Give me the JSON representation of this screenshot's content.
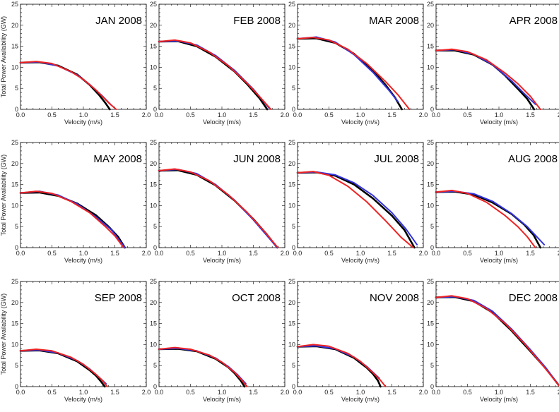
{
  "figure": {
    "xlabel": "Velocity (m/s)",
    "ylabel": "Total Power Availability (GW)",
    "xlim": [
      0,
      2.0
    ],
    "ylim": [
      0,
      25
    ],
    "xticks": [
      "0.0",
      "0.5",
      "1.0",
      "1.5",
      "2.0"
    ],
    "yticks": [
      "0",
      "5",
      "10",
      "15",
      "20",
      "25"
    ],
    "colors": {
      "observed": "#000000",
      "fit_blue": "#3333dd",
      "fit_red": "#ee2222"
    }
  },
  "chart_data": [
    {
      "type": "line",
      "title": "JAN 2008",
      "xlim": [
        0,
        2.0
      ],
      "ylim": [
        0,
        25
      ],
      "series": [
        {
          "color": "#000000",
          "x": [
            0,
            0.3,
            0.6,
            0.9,
            1.1,
            1.25,
            1.35,
            1.42
          ],
          "y": [
            11.1,
            11.2,
            10.4,
            8.3,
            5.8,
            3.4,
            1.5,
            0
          ]
        },
        {
          "color": "#3333dd",
          "x": [
            0,
            0.3,
            0.6,
            0.9,
            1.1,
            1.3,
            1.45
          ],
          "y": [
            11.1,
            11.3,
            10.3,
            8.2,
            5.9,
            3.2,
            0.9
          ]
        },
        {
          "color": "#ee2222",
          "x": [
            0,
            0.25,
            0.5,
            0.8,
            1.0,
            1.2,
            1.4,
            1.52
          ],
          "y": [
            11.1,
            11.4,
            10.9,
            9.0,
            7.1,
            4.6,
            1.6,
            0
          ]
        }
      ]
    },
    {
      "type": "line",
      "title": "FEB 2008",
      "xlim": [
        0,
        2.0
      ],
      "ylim": [
        0,
        25
      ],
      "series": [
        {
          "color": "#000000",
          "x": [
            0,
            0.3,
            0.6,
            0.9,
            1.2,
            1.4,
            1.6,
            1.72
          ],
          "y": [
            16.1,
            16.2,
            15.0,
            12.5,
            9.0,
            6.0,
            2.6,
            0
          ]
        },
        {
          "color": "#3333dd",
          "x": [
            0,
            0.3,
            0.6,
            0.9,
            1.2,
            1.5,
            1.75
          ],
          "y": [
            16.1,
            16.3,
            15.3,
            12.8,
            9.3,
            4.8,
            0.3
          ]
        },
        {
          "color": "#ee2222",
          "x": [
            0,
            0.25,
            0.5,
            0.8,
            1.1,
            1.4,
            1.6,
            1.78
          ],
          "y": [
            16.1,
            16.5,
            15.8,
            13.6,
            10.4,
            6.2,
            3.0,
            0
          ]
        }
      ]
    },
    {
      "type": "line",
      "title": "MAR 2008",
      "xlim": [
        0,
        2.0
      ],
      "ylim": [
        0,
        25
      ],
      "series": [
        {
          "color": "#000000",
          "x": [
            0,
            0.3,
            0.6,
            0.9,
            1.2,
            1.4,
            1.55,
            1.66
          ],
          "y": [
            16.8,
            16.9,
            15.8,
            13.2,
            9.2,
            5.8,
            2.8,
            0
          ]
        },
        {
          "color": "#3333dd",
          "x": [
            0,
            0.3,
            0.6,
            0.9,
            1.2,
            1.45,
            1.6
          ],
          "y": [
            16.8,
            17.2,
            16.0,
            13.0,
            8.8,
            4.6,
            1.8
          ]
        },
        {
          "color": "#ee2222",
          "x": [
            0,
            0.25,
            0.5,
            0.8,
            1.1,
            1.4,
            1.6,
            1.78
          ],
          "y": [
            16.8,
            17.1,
            16.5,
            14.3,
            10.9,
            6.6,
            3.4,
            0
          ]
        }
      ]
    },
    {
      "type": "line",
      "title": "APR 2008",
      "xlim": [
        0,
        2.0
      ],
      "ylim": [
        0,
        25
      ],
      "series": [
        {
          "color": "#000000",
          "x": [
            0,
            0.3,
            0.6,
            0.9,
            1.1,
            1.3,
            1.45,
            1.56
          ],
          "y": [
            14.0,
            14.0,
            13.0,
            10.6,
            8.0,
            4.9,
            2.5,
            0
          ]
        },
        {
          "color": "#3333dd",
          "x": [
            0,
            0.3,
            0.6,
            0.9,
            1.2,
            1.4,
            1.58
          ],
          "y": [
            14.0,
            14.2,
            13.1,
            10.6,
            6.8,
            3.8,
            1.2
          ]
        },
        {
          "color": "#ee2222",
          "x": [
            0,
            0.25,
            0.5,
            0.8,
            1.1,
            1.3,
            1.5,
            1.66
          ],
          "y": [
            14.0,
            14.3,
            13.7,
            11.8,
            8.6,
            6.1,
            3.1,
            0
          ]
        }
      ]
    },
    {
      "type": "line",
      "title": "MAY 2008",
      "xlim": [
        0,
        2.0
      ],
      "ylim": [
        0,
        25
      ],
      "series": [
        {
          "color": "#000000",
          "x": [
            0,
            0.3,
            0.6,
            0.9,
            1.2,
            1.4,
            1.55,
            1.66
          ],
          "y": [
            13.0,
            13.1,
            12.3,
            10.5,
            7.7,
            5.0,
            2.6,
            0
          ]
        },
        {
          "color": "#3333dd",
          "x": [
            0,
            0.3,
            0.6,
            0.9,
            1.2,
            1.45,
            1.66
          ],
          "y": [
            13.0,
            13.4,
            12.5,
            10.4,
            7.3,
            4.2,
            0
          ]
        },
        {
          "color": "#ee2222",
          "x": [
            0,
            0.25,
            0.5,
            0.8,
            1.1,
            1.35,
            1.5,
            1.64
          ],
          "y": [
            13.0,
            13.4,
            12.9,
            11.0,
            8.3,
            5.0,
            2.8,
            0
          ]
        }
      ]
    },
    {
      "type": "line",
      "title": "JUN 2008",
      "xlim": [
        0,
        2.0
      ],
      "ylim": [
        0,
        25
      ],
      "series": [
        {
          "color": "#000000",
          "x": [
            0,
            0.3,
            0.6,
            0.9,
            1.2,
            1.5,
            1.7,
            1.88
          ],
          "y": [
            18.3,
            18.4,
            17.3,
            14.8,
            11.2,
            6.8,
            3.4,
            0
          ]
        },
        {
          "color": "#3333dd",
          "x": [
            0,
            0.3,
            0.6,
            0.9,
            1.2,
            1.5,
            1.88
          ],
          "y": [
            18.3,
            18.6,
            17.6,
            15.0,
            11.3,
            6.6,
            0
          ]
        },
        {
          "color": "#ee2222",
          "x": [
            0,
            0.25,
            0.5,
            0.8,
            1.1,
            1.4,
            1.65,
            1.89
          ],
          "y": [
            18.3,
            18.7,
            18.0,
            15.9,
            12.6,
            8.4,
            4.3,
            0
          ]
        }
      ]
    },
    {
      "type": "line",
      "title": "JUL 2008",
      "xlim": [
        0,
        2.0
      ],
      "ylim": [
        0,
        25
      ],
      "series": [
        {
          "color": "#000000",
          "x": [
            0,
            0.3,
            0.6,
            0.9,
            1.2,
            1.5,
            1.7,
            1.86
          ],
          "y": [
            17.8,
            17.9,
            17.1,
            15.0,
            11.7,
            7.6,
            4.2,
            0
          ]
        },
        {
          "color": "#3333dd",
          "x": [
            0,
            0.3,
            0.6,
            0.9,
            1.2,
            1.5,
            1.72,
            1.9
          ],
          "y": [
            17.8,
            18.0,
            17.3,
            15.4,
            12.4,
            8.3,
            4.5,
            0.7
          ]
        },
        {
          "color": "#ee2222",
          "x": [
            0,
            0.25,
            0.5,
            0.8,
            1.1,
            1.4,
            1.65,
            1.84
          ],
          "y": [
            17.8,
            18.1,
            17.2,
            14.6,
            10.9,
            6.4,
            2.4,
            0
          ]
        }
      ]
    },
    {
      "type": "line",
      "title": "AUG 2008",
      "xlim": [
        0,
        2.0
      ],
      "ylim": [
        0,
        25
      ],
      "series": [
        {
          "color": "#000000",
          "x": [
            0,
            0.3,
            0.6,
            0.9,
            1.2,
            1.4,
            1.55,
            1.66
          ],
          "y": [
            13.2,
            13.3,
            12.6,
            10.7,
            8.0,
            5.5,
            3.0,
            0
          ]
        },
        {
          "color": "#3333dd",
          "x": [
            0,
            0.3,
            0.6,
            0.9,
            1.2,
            1.45,
            1.72
          ],
          "y": [
            13.2,
            13.4,
            12.8,
            11.0,
            8.1,
            5.0,
            0.7
          ]
        },
        {
          "color": "#ee2222",
          "x": [
            0,
            0.25,
            0.5,
            0.8,
            1.1,
            1.3,
            1.45,
            1.58
          ],
          "y": [
            13.2,
            13.6,
            12.9,
            10.8,
            7.6,
            5.0,
            2.6,
            0
          ]
        }
      ]
    },
    {
      "type": "line",
      "title": "SEP 2008",
      "xlim": [
        0,
        2.0
      ],
      "ylim": [
        0,
        25
      ],
      "series": [
        {
          "color": "#000000",
          "x": [
            0,
            0.3,
            0.6,
            0.9,
            1.1,
            1.2,
            1.28,
            1.34
          ],
          "y": [
            8.5,
            8.6,
            7.9,
            6.0,
            3.9,
            2.6,
            1.2,
            0
          ]
        },
        {
          "color": "#3333dd",
          "x": [
            0,
            0.3,
            0.6,
            0.9,
            1.1,
            1.25,
            1.36
          ],
          "y": [
            8.5,
            8.7,
            8.0,
            6.2,
            4.2,
            2.2,
            0.7
          ]
        },
        {
          "color": "#ee2222",
          "x": [
            0,
            0.25,
            0.5,
            0.8,
            1.0,
            1.2,
            1.3,
            1.38
          ],
          "y": [
            8.5,
            8.9,
            8.5,
            7.0,
            5.3,
            2.9,
            1.5,
            0
          ]
        }
      ]
    },
    {
      "type": "line",
      "title": "OCT 2008",
      "xlim": [
        0,
        2.0
      ],
      "ylim": [
        0,
        25
      ],
      "series": [
        {
          "color": "#000000",
          "x": [
            0,
            0.3,
            0.6,
            0.9,
            1.1,
            1.2,
            1.3,
            1.36
          ],
          "y": [
            8.9,
            9.0,
            8.4,
            6.6,
            4.6,
            3.2,
            1.4,
            0
          ]
        },
        {
          "color": "#3333dd",
          "x": [
            0,
            0.3,
            0.6,
            0.9,
            1.1,
            1.25,
            1.38
          ],
          "y": [
            8.9,
            9.1,
            8.5,
            6.8,
            4.8,
            2.8,
            0.7
          ]
        },
        {
          "color": "#ee2222",
          "x": [
            0,
            0.25,
            0.5,
            0.8,
            1.0,
            1.2,
            1.3,
            1.4
          ],
          "y": [
            8.9,
            9.3,
            8.9,
            7.5,
            5.8,
            3.4,
            1.8,
            0
          ]
        }
      ]
    },
    {
      "type": "line",
      "title": "NOV 2008",
      "xlim": [
        0,
        2.0
      ],
      "ylim": [
        0,
        25
      ],
      "series": [
        {
          "color": "#000000",
          "x": [
            0,
            0.3,
            0.6,
            0.9,
            1.1,
            1.2,
            1.28,
            1.32
          ],
          "y": [
            9.5,
            9.6,
            8.9,
            6.8,
            4.5,
            3.0,
            1.4,
            0
          ]
        },
        {
          "color": "#3333dd",
          "x": [
            0,
            0.3,
            0.6,
            0.9,
            1.1,
            1.2,
            1.3
          ],
          "y": [
            9.5,
            9.7,
            9.0,
            7.0,
            4.8,
            3.4,
            2.0
          ]
        },
        {
          "color": "#ee2222",
          "x": [
            0,
            0.25,
            0.5,
            0.8,
            1.0,
            1.2,
            1.32,
            1.4
          ],
          "y": [
            9.5,
            10.0,
            9.6,
            7.9,
            6.0,
            3.3,
            1.5,
            0
          ]
        }
      ]
    },
    {
      "type": "line",
      "title": "DEC 2008",
      "xlim": [
        0,
        2.0
      ],
      "ylim": [
        0,
        25
      ],
      "series": [
        {
          "color": "#000000",
          "x": [
            0,
            0.3,
            0.6,
            0.9,
            1.2,
            1.5,
            1.75,
            1.97
          ],
          "y": [
            21.2,
            21.3,
            20.3,
            17.6,
            13.3,
            8.4,
            4.2,
            0
          ]
        },
        {
          "color": "#3333dd",
          "x": [
            0,
            0.3,
            0.6,
            0.9,
            1.2,
            1.5,
            1.75,
            1.97
          ],
          "y": [
            21.2,
            21.4,
            20.5,
            17.9,
            13.7,
            8.8,
            4.4,
            0
          ]
        },
        {
          "color": "#ee2222",
          "x": [
            0,
            0.25,
            0.5,
            0.8,
            1.1,
            1.4,
            1.7,
            1.97
          ],
          "y": [
            21.2,
            21.6,
            20.9,
            18.6,
            15.0,
            10.3,
            5.0,
            0
          ]
        }
      ]
    }
  ]
}
